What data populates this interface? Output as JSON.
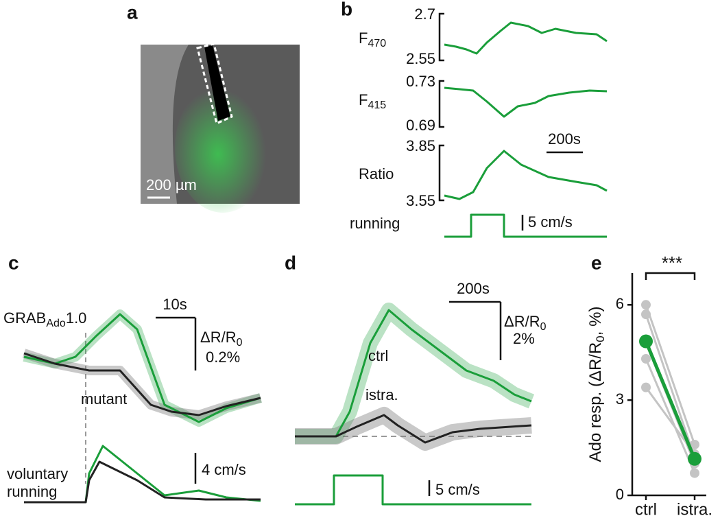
{
  "panels": {
    "a": {
      "letter": "a",
      "scale_bar": "200 µm"
    },
    "b": {
      "letter": "b",
      "traces": [
        {
          "label": "F",
          "sub": "470",
          "ticks": [
            2.7,
            2.55
          ]
        },
        {
          "label": "F",
          "sub": "415",
          "ticks": [
            0.73,
            0.69
          ]
        },
        {
          "label": "Ratio",
          "ticks": [
            3.85,
            3.55
          ]
        }
      ],
      "time_scale": "200s",
      "running_label": "running",
      "speed_scale": "5 cm/s"
    },
    "c": {
      "letter": "c",
      "sensor": "GRAB",
      "sensor_sub": "Ado",
      "sensor_version": "1.0",
      "time_scale": "10s",
      "amp_label": "ΔR/R",
      "amp_sub": "0",
      "amp_scale": "0.2%",
      "mutant_label": "mutant",
      "running_label_1": "voluntary",
      "running_label_2": "running",
      "speed_scale": "4 cm/s"
    },
    "d": {
      "letter": "d",
      "time_scale": "200s",
      "amp_label": "ΔR/R",
      "amp_sub": "0",
      "amp_scale": "2%",
      "ctrl_label": "ctrl",
      "istra_label": "istra.",
      "speed_scale": "5 cm/s"
    }
  },
  "chart_data": {
    "type": "paired",
    "letter": "e",
    "y_label_pre": "Ado resp. (ΔR/R",
    "y_label_sub": "0",
    "y_label_post": ", %)",
    "categories": [
      "ctrl",
      "istra."
    ],
    "ylim": [
      0,
      7
    ],
    "yticks": [
      0,
      3,
      6
    ],
    "annotation": "***",
    "series": [
      {
        "color": "#c4c4c4",
        "values": [
          6.0,
          1.6
        ]
      },
      {
        "color": "#c4c4c4",
        "values": [
          5.7,
          1.2
        ]
      },
      {
        "color": "#c4c4c4",
        "values": [
          4.8,
          1.0
        ]
      },
      {
        "color": "#c4c4c4",
        "values": [
          4.3,
          0.7
        ]
      },
      {
        "color": "#c4c4c4",
        "values": [
          3.4,
          1.3
        ]
      },
      {
        "color": "#1a9e3a",
        "values": [
          4.85,
          1.15
        ]
      }
    ]
  }
}
